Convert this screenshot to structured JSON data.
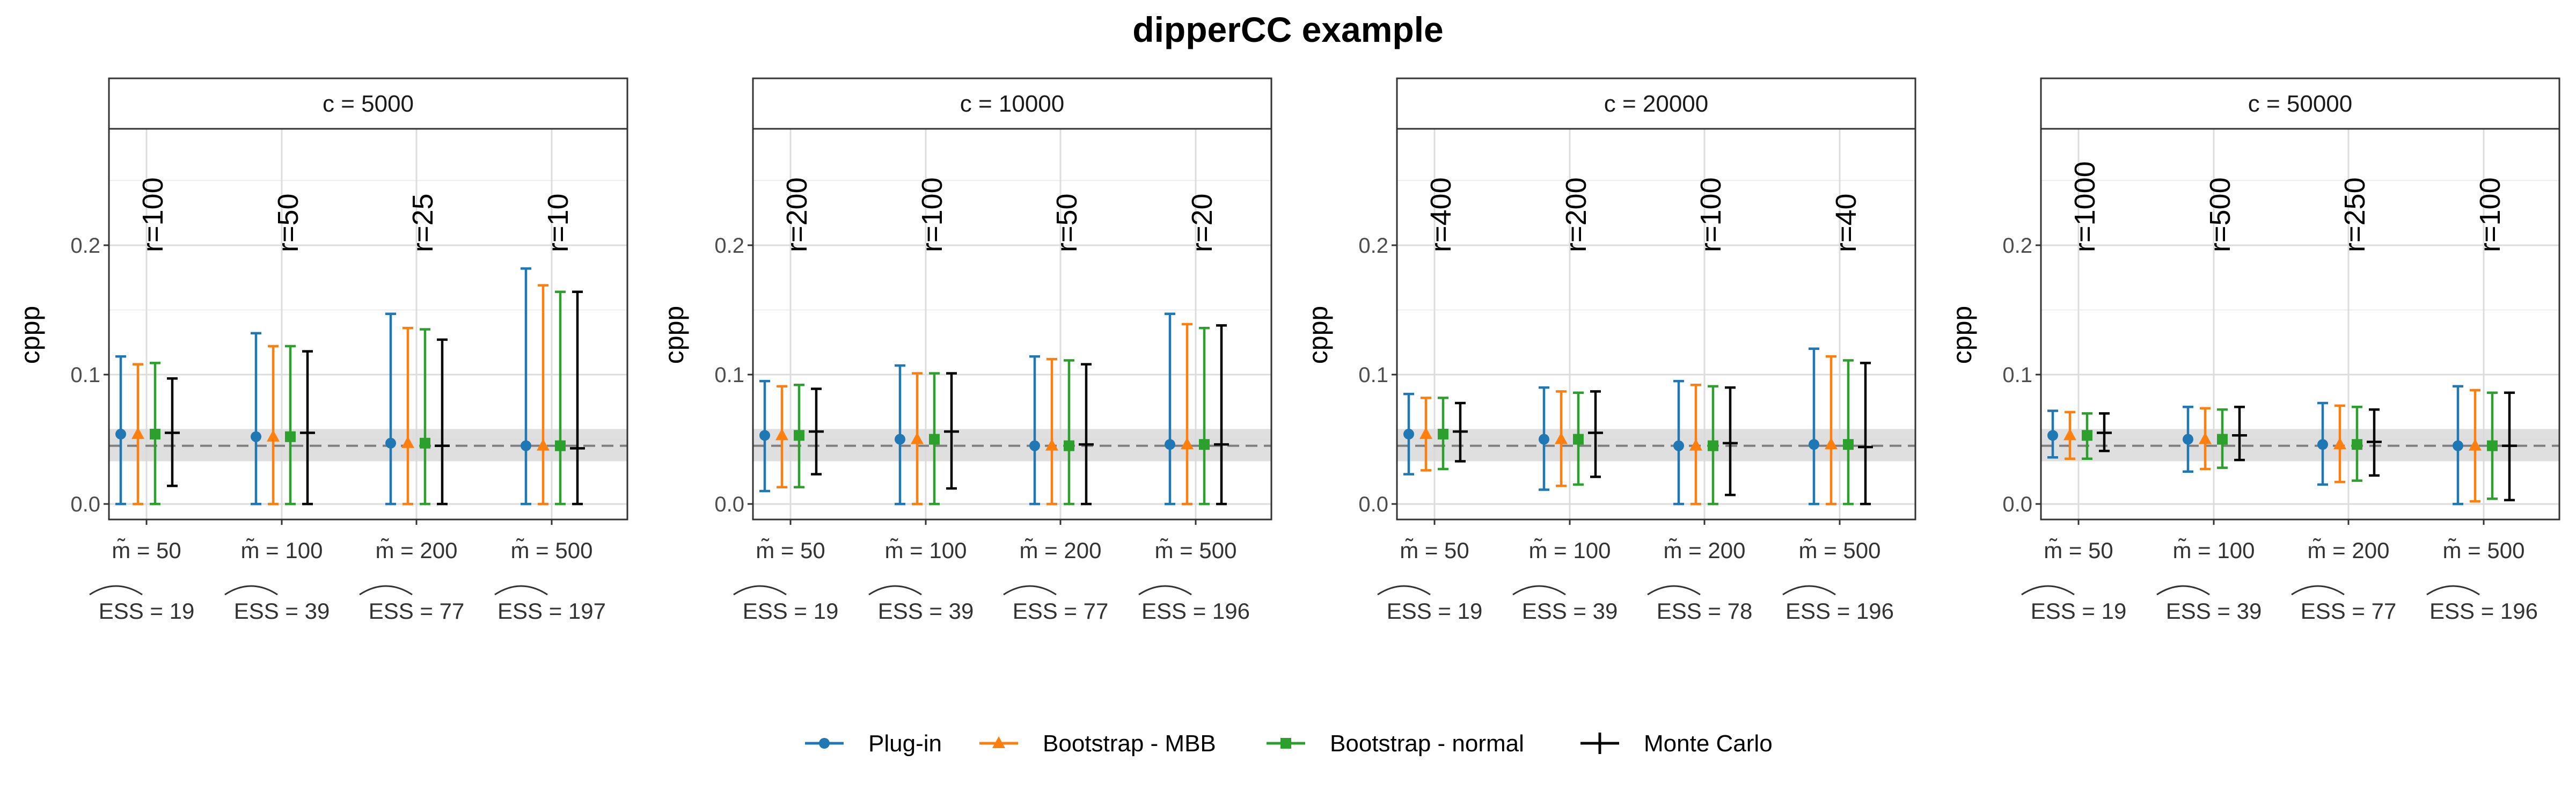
{
  "chart_data": {
    "type": "errorbar",
    "title": "dipperCC example",
    "ylabel": "cppp",
    "ylim": [
      -0.012,
      0.29
    ],
    "yticks": [
      "0.0",
      "0.1",
      "0.2"
    ],
    "reference": {
      "value": 0.045,
      "band": [
        0.033,
        0.058
      ]
    },
    "series": [
      {
        "name": "Plug-in",
        "color": "#1f77b4",
        "marker": "circle"
      },
      {
        "name": "Bootstrap - MBB",
        "color": "#ff7f0e",
        "marker": "triangle"
      },
      {
        "name": "Bootstrap - normal",
        "color": "#2ca02c",
        "marker": "square"
      },
      {
        "name": "Monte Carlo",
        "color": "#000000",
        "marker": "cross"
      }
    ],
    "panels": [
      {
        "label": "c = 5000",
        "groups": [
          {
            "m": "m̃ = 50",
            "ess": "ESS = 19",
            "r": "r=100",
            "bars": [
              [
                0.054,
                0.0,
                0.114
              ],
              [
                0.054,
                0.0,
                0.108
              ],
              [
                0.054,
                0.0,
                0.109
              ],
              [
                0.055,
                0.014,
                0.097
              ]
            ]
          },
          {
            "m": "m̃ = 100",
            "ess": "ESS = 39",
            "r": "r=50",
            "bars": [
              [
                0.052,
                0.0,
                0.132
              ],
              [
                0.052,
                0.0,
                0.122
              ],
              [
                0.052,
                0.0,
                0.122
              ],
              [
                0.055,
                0.0,
                0.118
              ]
            ]
          },
          {
            "m": "m̃ = 200",
            "ess": "ESS = 77",
            "r": "r=25",
            "bars": [
              [
                0.047,
                0.0,
                0.147
              ],
              [
                0.047,
                0.0,
                0.136
              ],
              [
                0.047,
                0.0,
                0.135
              ],
              [
                0.045,
                0.0,
                0.127
              ]
            ]
          },
          {
            "m": "m̃ = 500",
            "ess": "ESS = 197",
            "r": "r=10",
            "bars": [
              [
                0.045,
                0.0,
                0.182
              ],
              [
                0.045,
                0.0,
                0.169
              ],
              [
                0.045,
                0.0,
                0.164
              ],
              [
                0.043,
                0.0,
                0.164
              ]
            ]
          }
        ]
      },
      {
        "label": "c = 10000",
        "groups": [
          {
            "m": "m̃ = 50",
            "ess": "ESS = 19",
            "r": "r=200",
            "bars": [
              [
                0.053,
                0.01,
                0.095
              ],
              [
                0.053,
                0.013,
                0.091
              ],
              [
                0.053,
                0.013,
                0.092
              ],
              [
                0.056,
                0.023,
                0.089
              ]
            ]
          },
          {
            "m": "m̃ = 100",
            "ess": "ESS = 39",
            "r": "r=100",
            "bars": [
              [
                0.05,
                0.0,
                0.107
              ],
              [
                0.05,
                0.0,
                0.101
              ],
              [
                0.05,
                0.0,
                0.101
              ],
              [
                0.056,
                0.012,
                0.101
              ]
            ]
          },
          {
            "m": "m̃ = 200",
            "ess": "ESS = 77",
            "r": "r=50",
            "bars": [
              [
                0.045,
                0.0,
                0.114
              ],
              [
                0.045,
                0.0,
                0.112
              ],
              [
                0.045,
                0.0,
                0.111
              ],
              [
                0.046,
                0.0,
                0.108
              ]
            ]
          },
          {
            "m": "m̃ = 500",
            "ess": "ESS = 196",
            "r": "r=20",
            "bars": [
              [
                0.046,
                0.0,
                0.147
              ],
              [
                0.046,
                0.0,
                0.139
              ],
              [
                0.046,
                0.0,
                0.136
              ],
              [
                0.046,
                0.0,
                0.138
              ]
            ]
          }
        ]
      },
      {
        "label": "c = 20000",
        "groups": [
          {
            "m": "m̃ = 50",
            "ess": "ESS = 19",
            "r": "r=400",
            "bars": [
              [
                0.054,
                0.023,
                0.085
              ],
              [
                0.054,
                0.026,
                0.082
              ],
              [
                0.054,
                0.027,
                0.082
              ],
              [
                0.056,
                0.033,
                0.078
              ]
            ]
          },
          {
            "m": "m̃ = 100",
            "ess": "ESS = 39",
            "r": "r=200",
            "bars": [
              [
                0.05,
                0.011,
                0.09
              ],
              [
                0.05,
                0.014,
                0.087
              ],
              [
                0.05,
                0.015,
                0.086
              ],
              [
                0.055,
                0.021,
                0.087
              ]
            ]
          },
          {
            "m": "m̃ = 200",
            "ess": "ESS = 78",
            "r": "r=100",
            "bars": [
              [
                0.045,
                0.0,
                0.095
              ],
              [
                0.045,
                0.0,
                0.092
              ],
              [
                0.045,
                0.0,
                0.091
              ],
              [
                0.047,
                0.007,
                0.09
              ]
            ]
          },
          {
            "m": "m̃ = 500",
            "ess": "ESS = 196",
            "r": "r=40",
            "bars": [
              [
                0.046,
                0.0,
                0.12
              ],
              [
                0.046,
                0.0,
                0.114
              ],
              [
                0.046,
                0.0,
                0.111
              ],
              [
                0.044,
                0.0,
                0.109
              ]
            ]
          }
        ]
      },
      {
        "label": "c = 50000",
        "groups": [
          {
            "m": "m̃ = 50",
            "ess": "ESS = 19",
            "r": "r=1000",
            "bars": [
              [
                0.053,
                0.036,
                0.072
              ],
              [
                0.053,
                0.035,
                0.071
              ],
              [
                0.053,
                0.035,
                0.07
              ],
              [
                0.055,
                0.041,
                0.07
              ]
            ]
          },
          {
            "m": "m̃ = 100",
            "ess": "ESS = 39",
            "r": "r=500",
            "bars": [
              [
                0.05,
                0.025,
                0.075
              ],
              [
                0.05,
                0.027,
                0.074
              ],
              [
                0.05,
                0.028,
                0.073
              ],
              [
                0.053,
                0.034,
                0.075
              ]
            ]
          },
          {
            "m": "m̃ = 200",
            "ess": "ESS = 77",
            "r": "r=250",
            "bars": [
              [
                0.046,
                0.015,
                0.078
              ],
              [
                0.046,
                0.017,
                0.076
              ],
              [
                0.046,
                0.018,
                0.075
              ],
              [
                0.048,
                0.022,
                0.073
              ]
            ]
          },
          {
            "m": "m̃ = 500",
            "ess": "ESS = 196",
            "r": "r=100",
            "bars": [
              [
                0.045,
                0.0,
                0.091
              ],
              [
                0.045,
                0.002,
                0.088
              ],
              [
                0.045,
                0.004,
                0.086
              ],
              [
                0.045,
                0.003,
                0.086
              ]
            ]
          }
        ]
      }
    ]
  }
}
